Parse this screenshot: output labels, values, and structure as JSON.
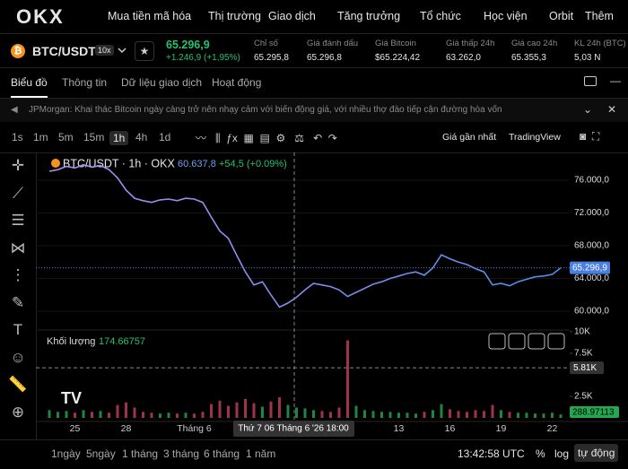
{
  "brand": "OKX",
  "nav": {
    "items": [
      "Mua tiền mã hóa",
      "Thị trường",
      "Giao dịch",
      "Tăng trưởng",
      "Tổ chức",
      "Học viện",
      "Orbit",
      "Thêm"
    ]
  },
  "ticker": {
    "pair": "BTC/USDT",
    "leverage": "10x",
    "price": "65.296,9",
    "change": "+1.246,9 (+1,95%)",
    "stats": [
      {
        "label": "Chỉ số",
        "value": "65.295,8"
      },
      {
        "label": "Giá đánh dấu",
        "value": "65.296,8"
      },
      {
        "label": "Giá Bitcoin",
        "value": "$65.224,42"
      },
      {
        "label": "Giá thấp 24h",
        "value": "63.262,0"
      },
      {
        "label": "Giá cao 24h",
        "value": "65.355,3"
      },
      {
        "label": "KL 24h (BTC)",
        "value": "5,03 N"
      }
    ]
  },
  "tabs": [
    "Biểu đồ",
    "Thông tin",
    "Dữ liệu giao dịch",
    "Hoạt động"
  ],
  "news": "JPMorgan: Khai thác Bitcoin ngày càng trở nên nhạy cảm với biến động giá, với nhiều thợ đào tiếp cận đường hòa vốn",
  "toolbar": {
    "intervals": [
      "1s",
      "1m",
      "5m",
      "15m",
      "1h",
      "4h",
      "1d"
    ],
    "price_type": "Giá gần nhất",
    "view": "TradingView"
  },
  "chart_data": {
    "type": "line",
    "legend": "BTC/USDT · 1h · OKX",
    "legend_value": "60.637,8",
    "legend_change": "+54,5 (+0.09%)",
    "categories": [
      null,
      null,
      null,
      "25",
      null,
      null,
      null,
      null,
      null,
      "28",
      null,
      null,
      null,
      null,
      null,
      null,
      null,
      "Tháng 6",
      null,
      null,
      null,
      null,
      null,
      null,
      null,
      null,
      null,
      null,
      null,
      null,
      null,
      null,
      null,
      null,
      null,
      null,
      null,
      null,
      null,
      null,
      null,
      "13",
      null,
      null,
      null,
      null,
      null,
      "16",
      null,
      null,
      null,
      null,
      null,
      "19",
      null,
      null,
      null,
      null,
      null,
      "22",
      null
    ],
    "series": [
      {
        "name": "BTC/USDT",
        "colors": [
          "#b08cf0",
          "#4f8fe6"
        ],
        "values": [
          77100,
          77300,
          77700,
          77500,
          77900,
          77600,
          77800,
          77300,
          76300,
          74800,
          73800,
          73500,
          73300,
          73600,
          73700,
          73500,
          73800,
          73700,
          73300,
          71500,
          69800,
          68900,
          66800,
          64800,
          63200,
          63600,
          62000,
          60500,
          61000,
          61700,
          62600,
          63400,
          63200,
          63000,
          62600,
          61800,
          62300,
          62800,
          63300,
          63600,
          64000,
          64300,
          64600,
          64800,
          64400,
          65300,
          66900,
          66400,
          66000,
          65700,
          65200,
          64800,
          63200,
          63400,
          63100,
          63600,
          63900,
          64200,
          64300,
          64500,
          65296.9
        ]
      }
    ],
    "last_price": {
      "value": 65296.9,
      "label": "65.296,9",
      "color": "#4a7ee0"
    },
    "ylim": [
      57700,
      79400
    ],
    "yticks": [
      {
        "value": 76000,
        "label": "76.000,0"
      },
      {
        "value": 72000,
        "label": "72.000,0"
      },
      {
        "value": 68000,
        "label": "68.000,0"
      },
      {
        "value": 64000,
        "label": "64.000,0"
      },
      {
        "value": 60000,
        "label": "60.000,0"
      }
    ],
    "crosshair": {
      "x_label": "Thứ 7 06 Tháng 6 '26   18:00",
      "volume": {
        "value": 5810,
        "label": "5.81K"
      }
    },
    "volume": {
      "title": "Khối lượng",
      "current": "174.66757",
      "last": "288.97113",
      "up_color": "#25a750",
      "down_color": "#c7405f",
      "values": [
        900,
        700,
        800,
        600,
        900,
        700,
        800,
        600,
        1500,
        1800,
        1200,
        700,
        600,
        500,
        600,
        500,
        600,
        500,
        700,
        1600,
        2000,
        1400,
        1800,
        2200,
        1700,
        1300,
        1900,
        2400,
        1500,
        1200,
        1100,
        900,
        800,
        700,
        1200,
        9000,
        1400,
        900,
        800,
        700,
        700,
        600,
        600,
        500,
        700,
        900,
        1600,
        1000,
        800,
        700,
        900,
        800,
        1500,
        900,
        700,
        600,
        600,
        500,
        500,
        600,
        400
      ],
      "ylim": [
        0,
        10200
      ],
      "yticks": [
        {
          "value": 10000,
          "label": "10K"
        },
        {
          "value": 7500,
          "label": "7.5K"
        },
        {
          "value": 2500,
          "label": "2.5K"
        }
      ]
    }
  },
  "bottom": {
    "ranges": [
      "1ngày",
      "5ngày",
      "1 tháng",
      "3 tháng",
      "6 tháng",
      "1 năm"
    ],
    "time": "13:42:58 UTC",
    "percent": "%",
    "log": "log",
    "auto": "tự động"
  }
}
